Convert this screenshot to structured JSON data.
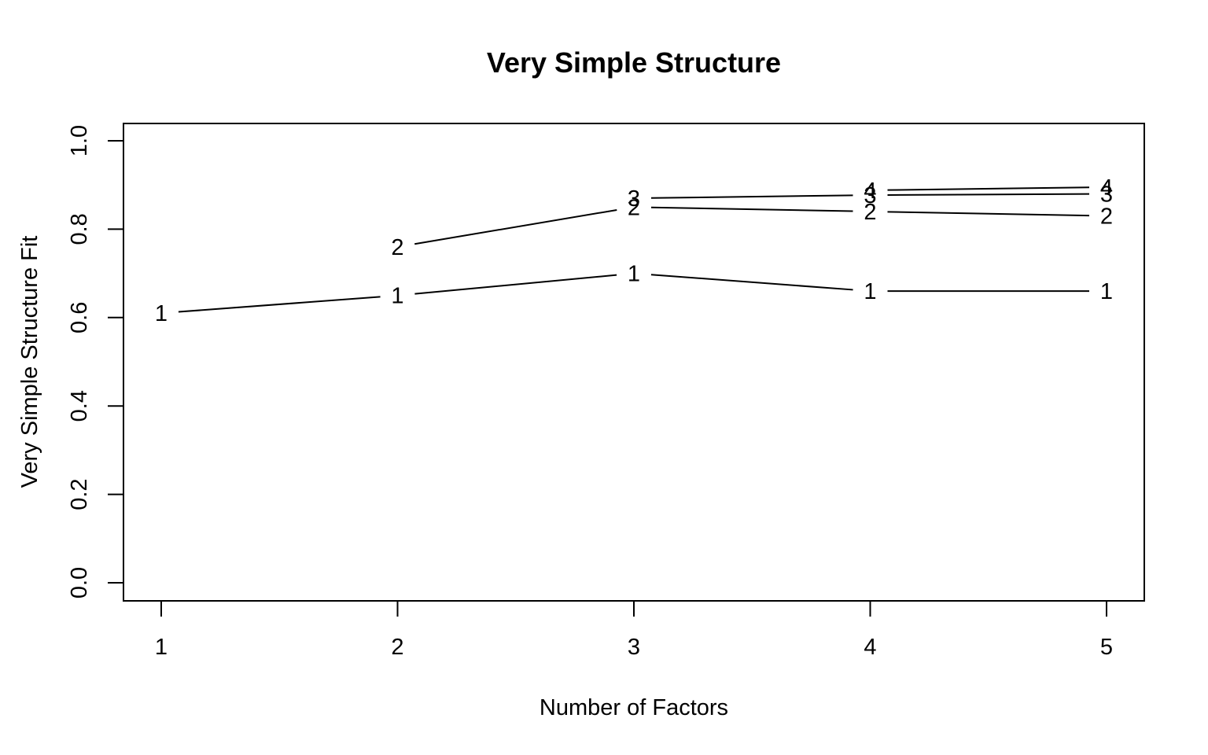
{
  "chart_data": {
    "type": "line",
    "title": "Very Simple Structure",
    "xlabel": "Number of Factors",
    "ylabel": "Very Simple Structure Fit",
    "x": [
      1,
      2,
      3,
      4,
      5
    ],
    "xlim": [
      1,
      5
    ],
    "ylim": [
      0,
      1
    ],
    "x_ticks": [
      "1",
      "2",
      "3",
      "4",
      "5"
    ],
    "y_ticks": [
      "0.0",
      "0.2",
      "0.4",
      "0.6",
      "0.8",
      "1.0"
    ],
    "y_tick_values": [
      0,
      0.2,
      0.4,
      0.6,
      0.8,
      1.0
    ],
    "grid": false,
    "series": [
      {
        "marker": "1",
        "x": [
          1,
          2,
          3,
          4,
          5
        ],
        "values": [
          0.61,
          0.65,
          0.7,
          0.66,
          0.66
        ]
      },
      {
        "marker": "2",
        "x": [
          2,
          3,
          4,
          5
        ],
        "values": [
          0.76,
          0.85,
          0.84,
          0.83
        ]
      },
      {
        "marker": "3",
        "x": [
          3,
          4,
          5
        ],
        "values": [
          0.87,
          0.877,
          0.88
        ]
      },
      {
        "marker": "4",
        "x": [
          4,
          5
        ],
        "values": [
          0.888,
          0.895
        ]
      }
    ]
  }
}
